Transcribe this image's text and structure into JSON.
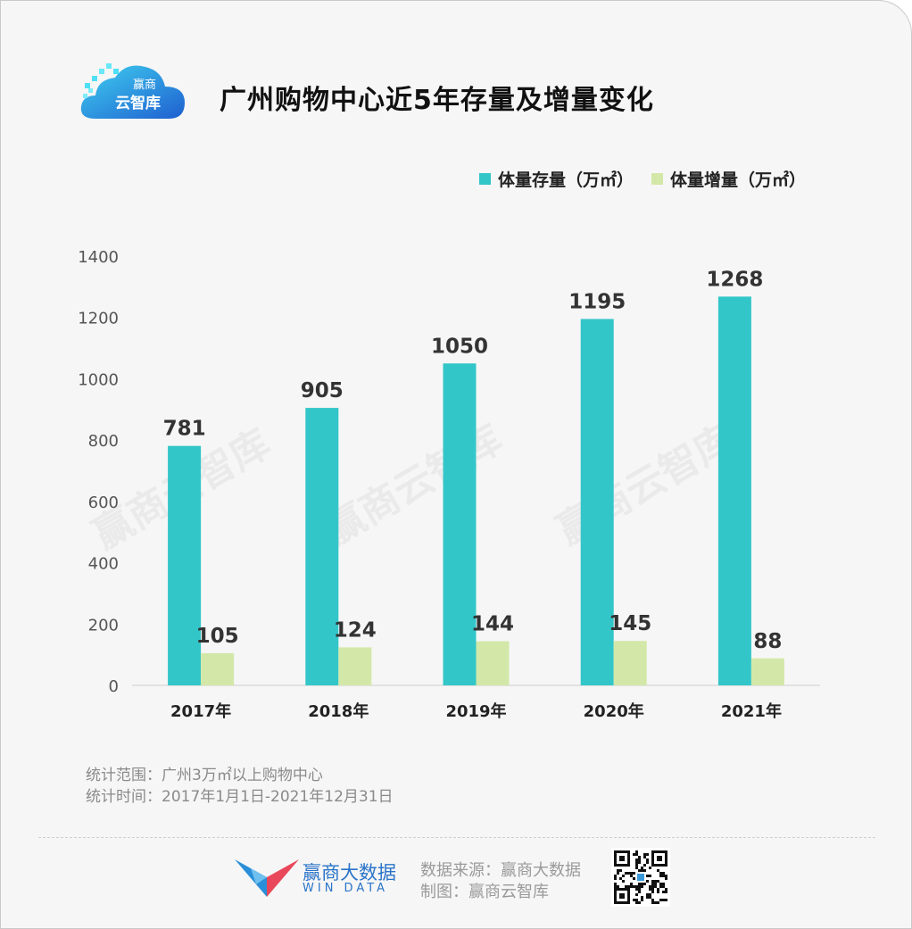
{
  "header": {
    "logo_text_top": "赢商",
    "logo_text_bottom": "云智库",
    "title": "广州购物中心近5年存量及增量变化"
  },
  "watermark": "赢商云智库",
  "chart_data": {
    "type": "bar",
    "categories": [
      "2017年",
      "2018年",
      "2019年",
      "2020年",
      "2021年"
    ],
    "series": [
      {
        "name": "体量存量（万㎡）",
        "values": [
          781,
          905,
          1050,
          1195,
          1268
        ],
        "color": "#33c6c9"
      },
      {
        "name": "体量增量（万㎡）",
        "values": [
          105,
          124,
          144,
          145,
          88
        ],
        "color": "#d3e8a8"
      }
    ],
    "yticks": [
      "0",
      "200",
      "400",
      "600",
      "800",
      "1000",
      "1200",
      "1400"
    ],
    "ylim": [
      0,
      1400
    ],
    "legend_position": "top-right",
    "grid": false
  },
  "notes": {
    "scope": "统计范围：广州3万㎡以上购物中心",
    "period": "统计时间：2017年1月1日-2021年12月31日"
  },
  "footer": {
    "brand_name": "赢商大数据",
    "brand_sub": "WIN DATA",
    "source": "数据来源：赢商大数据",
    "maker": "制图：赢商云智库"
  }
}
